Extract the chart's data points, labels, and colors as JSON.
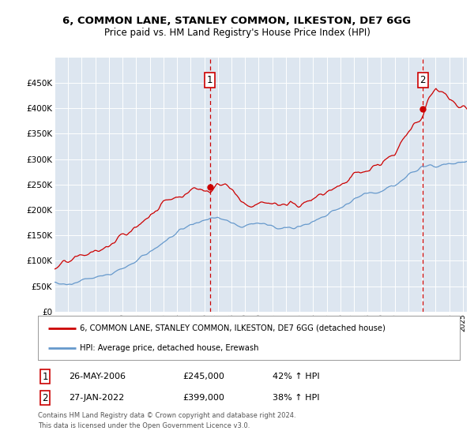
{
  "title": "6, COMMON LANE, STANLEY COMMON, ILKESTON, DE7 6GG",
  "subtitle": "Price paid vs. HM Land Registry's House Price Index (HPI)",
  "legend_line1": "6, COMMON LANE, STANLEY COMMON, ILKESTON, DE7 6GG (detached house)",
  "legend_line2": "HPI: Average price, detached house, Erewash",
  "footer": "Contains HM Land Registry data © Crown copyright and database right 2024.\nThis data is licensed under the Open Government Licence v3.0.",
  "annotation1_label": "1",
  "annotation1_date": "26-MAY-2006",
  "annotation1_price": "£245,000",
  "annotation1_hpi": "42% ↑ HPI",
  "annotation2_label": "2",
  "annotation2_date": "27-JAN-2022",
  "annotation2_price": "£399,000",
  "annotation2_hpi": "38% ↑ HPI",
  "red_color": "#cc0000",
  "blue_color": "#6699cc",
  "plot_bg": "#dde6f0",
  "ylim": [
    0,
    500000
  ],
  "yticks": [
    0,
    50000,
    100000,
    150000,
    200000,
    250000,
    300000,
    350000,
    400000,
    450000
  ],
  "ytick_labels": [
    "£0",
    "£50K",
    "£100K",
    "£150K",
    "£200K",
    "£250K",
    "£300K",
    "£350K",
    "£400K",
    "£450K"
  ],
  "vline1_x": 2006.42,
  "vline2_x": 2022.07,
  "sale1_x": 2006.42,
  "sale1_y": 245000,
  "sale2_x": 2022.07,
  "sale2_y": 399000,
  "xlim_left": 1995,
  "xlim_right": 2025.3
}
